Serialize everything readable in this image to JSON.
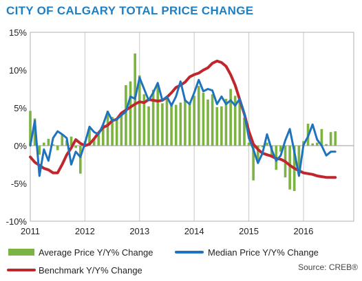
{
  "chart_data": {
    "type": "bar",
    "title": "CITY OF CALGARY TOTAL PRICE CHANGE",
    "source": "Source: CREB®",
    "ylim": [
      -10,
      15
    ],
    "y_ticks": [
      15,
      10,
      5,
      0,
      -5,
      -10
    ],
    "y_tick_labels": [
      "15%",
      "10%",
      "5%",
      "0%",
      "-5%",
      "-10%"
    ],
    "x_ticks": [
      2011,
      2012,
      2013,
      2014,
      2015,
      2016
    ],
    "x_tick_labels": [
      "2011",
      "2012",
      "2013",
      "2014",
      "2015",
      "2016"
    ],
    "x_range": [
      2011.0,
      2016.92
    ],
    "grid": "vertical",
    "legend": "bottom",
    "x": [
      2011.0,
      2011.083,
      2011.167,
      2011.25,
      2011.333,
      2011.417,
      2011.5,
      2011.583,
      2011.667,
      2011.75,
      2011.833,
      2011.917,
      2012.0,
      2012.083,
      2012.167,
      2012.25,
      2012.333,
      2012.417,
      2012.5,
      2012.583,
      2012.667,
      2012.75,
      2012.833,
      2012.917,
      2013.0,
      2013.083,
      2013.167,
      2013.25,
      2013.333,
      2013.417,
      2013.5,
      2013.583,
      2013.667,
      2013.75,
      2013.833,
      2013.917,
      2014.0,
      2014.083,
      2014.167,
      2014.25,
      2014.333,
      2014.417,
      2014.5,
      2014.583,
      2014.667,
      2014.75,
      2014.833,
      2014.917,
      2015.0,
      2015.083,
      2015.167,
      2015.25,
      2015.333,
      2015.417,
      2015.5,
      2015.583,
      2015.667,
      2015.75,
      2015.833,
      2015.917,
      2016.0,
      2016.083,
      2016.167,
      2016.25,
      2016.333,
      2016.417,
      2016.5,
      2016.583
    ],
    "series": [
      {
        "name": "Average Price Y/Y% Change",
        "type": "bar",
        "color": "#7cb342",
        "values": [
          4.6,
          3.6,
          -1.2,
          0.4,
          0.9,
          0.2,
          -0.6,
          1.5,
          0.7,
          1.2,
          -0.3,
          -3.7,
          0.6,
          2.3,
          0.9,
          1.4,
          2.8,
          4.6,
          3.8,
          3.4,
          4.3,
          8.0,
          8.5,
          12.2,
          9.3,
          6.8,
          5.2,
          7.4,
          7.9,
          5.6,
          6.2,
          5.7,
          5.4,
          5.7,
          6.1,
          5.6,
          6.6,
          7.9,
          7.0,
          6.1,
          6.8,
          5.1,
          5.2,
          6.2,
          7.5,
          6.6,
          6.3,
          3.7,
          0.4,
          -4.6,
          -2.0,
          -0.2,
          0.4,
          -1.5,
          -3.2,
          -0.8,
          -4.2,
          -5.8,
          -6.0,
          -3.5,
          0.6,
          2.9,
          0.3,
          0.4,
          2.2,
          0.2,
          1.8,
          1.9
        ]
      },
      {
        "name": "Median Price Y/Y% Change",
        "type": "line",
        "color": "#1e73be",
        "values": [
          0.0,
          3.3,
          -4.0,
          -0.5,
          -2.0,
          1.0,
          1.9,
          1.5,
          1.0,
          -2.5,
          -0.8,
          -1.5,
          0.3,
          2.5,
          1.8,
          1.5,
          2.8,
          4.5,
          3.3,
          3.5,
          4.0,
          4.5,
          6.5,
          6.2,
          9.0,
          7.5,
          6.0,
          7.0,
          8.3,
          6.0,
          6.5,
          5.3,
          6.5,
          8.5,
          6.0,
          5.5,
          7.0,
          8.7,
          7.2,
          7.5,
          7.3,
          5.5,
          6.5,
          5.5,
          6.0,
          5.3,
          6.2,
          4.3,
          1.0,
          -0.5,
          -2.3,
          -1.0,
          1.5,
          -0.5,
          -2.0,
          -1.3,
          0.7,
          2.2,
          -0.8,
          -4.0,
          0.1,
          1.2,
          2.8,
          0.8,
          0.0,
          -1.3,
          -0.8,
          -0.8
        ]
      },
      {
        "name": "Benchmark Y/Y% Change",
        "type": "line",
        "color": "#c0272d",
        "values": [
          -1.5,
          -2.2,
          -2.6,
          -3.0,
          -3.2,
          -3.6,
          -3.6,
          -2.5,
          -1.2,
          -0.3,
          0.8,
          0.3,
          0.0,
          0.2,
          0.9,
          1.7,
          2.4,
          2.7,
          3.3,
          3.5,
          4.3,
          4.7,
          5.1,
          5.5,
          5.8,
          5.7,
          6.1,
          6.0,
          5.9,
          6.0,
          6.4,
          7.0,
          7.7,
          8.0,
          8.4,
          9.1,
          9.4,
          9.6,
          10.0,
          10.3,
          10.9,
          11.2,
          11.0,
          10.5,
          9.4,
          8.0,
          6.1,
          4.2,
          1.9,
          0.2,
          -0.5,
          -1.0,
          -1.2,
          -1.4,
          -1.7,
          -1.8,
          -2.1,
          -2.6,
          -3.0,
          -3.3,
          -3.6,
          -3.7,
          -3.8,
          -4.0,
          -4.1,
          -4.2,
          -4.2,
          -4.2
        ]
      }
    ]
  }
}
